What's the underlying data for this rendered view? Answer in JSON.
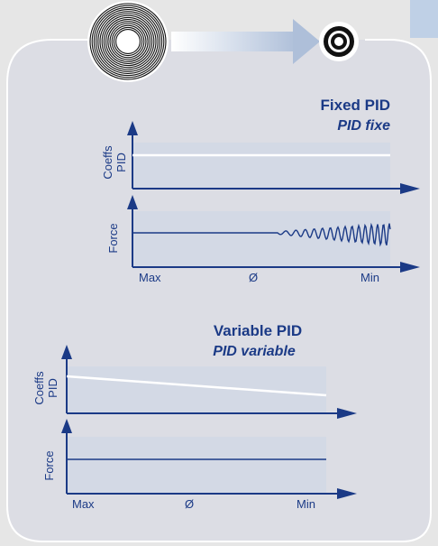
{
  "fixed": {
    "title": "Fixed PID",
    "subtitle": "PID fixe",
    "coeffs_label_1": "Coeffs",
    "coeffs_label_2": "PID",
    "force_label": "Force",
    "x_ticks": [
      "Max",
      "Ø",
      "Min"
    ]
  },
  "variable": {
    "title": "Variable PID",
    "subtitle": "PID variable",
    "coeffs_label_1": "Coeffs",
    "coeffs_label_2": "PID",
    "force_label": "Force",
    "x_ticks": [
      "Max",
      "Ø",
      "Min"
    ]
  },
  "colors": {
    "background": "#e6e6e6",
    "panel_fill": "#dcdde4",
    "plot_fill": "#d3d9e5",
    "accent_blue": "#1b3a86",
    "white_line": "#ffffff",
    "corner_tab": "#bfd0e6"
  },
  "icons": [
    "large-spool-icon",
    "small-spool-icon",
    "shrink-arrow-icon"
  ]
}
